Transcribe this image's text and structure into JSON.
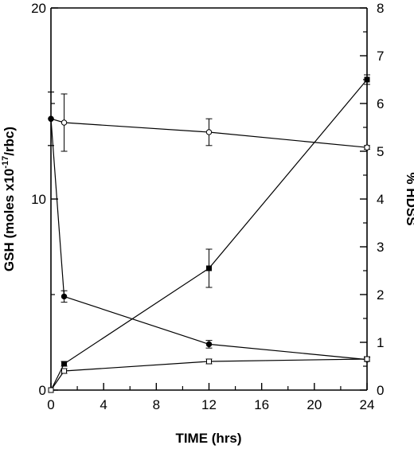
{
  "chart_data": {
    "type": "line",
    "xlabel": "TIME (hrs)",
    "ylabel_left": {
      "main": "GSH  (moles x10",
      "sup": "-17",
      "tail": "/rbc)"
    },
    "ylabel_right": "% HDSS",
    "xlim": [
      0,
      24
    ],
    "ylim_left": [
      0,
      20
    ],
    "ylim_right": [
      0,
      8
    ],
    "x_ticks": [
      0,
      4,
      8,
      12,
      16,
      20,
      24
    ],
    "y_ticks_left": [
      0,
      10,
      20
    ],
    "y_ticks_right": [
      0,
      1,
      2,
      3,
      4,
      5,
      6,
      7,
      8
    ],
    "series": [
      {
        "axis": "left",
        "marker": "open-circle",
        "x": [
          0,
          1,
          12,
          24
        ],
        "y": [
          14.2,
          14.0,
          13.5,
          12.7
        ],
        "err": [
          1.4,
          1.5,
          0.7,
          0.1
        ]
      },
      {
        "axis": "left",
        "marker": "filled-circle",
        "x": [
          0,
          1,
          12,
          24
        ],
        "y": [
          14.2,
          4.9,
          2.4,
          1.6
        ],
        "err": [
          1.4,
          0.3,
          0.2,
          0.1
        ]
      },
      {
        "axis": "right",
        "marker": "filled-square",
        "x": [
          0,
          1,
          12,
          24
        ],
        "y": [
          0,
          0.55,
          2.55,
          6.5
        ],
        "err": [
          0,
          0.05,
          0.4,
          0.1
        ]
      },
      {
        "axis": "right",
        "marker": "open-square",
        "x": [
          0,
          1,
          12,
          24
        ],
        "y": [
          0,
          0.4,
          0.6,
          0.65
        ],
        "err": [
          0,
          0.05,
          0.05,
          0.05
        ]
      }
    ]
  }
}
